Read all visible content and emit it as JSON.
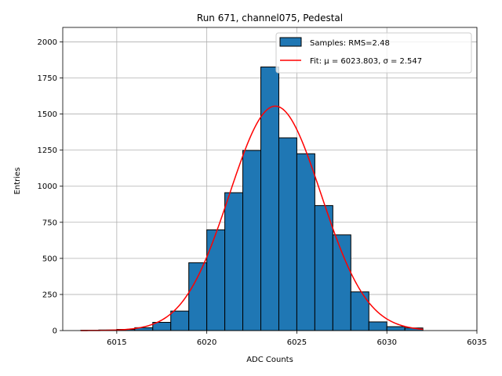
{
  "chart_data": {
    "type": "bar",
    "title": "Run 671, channel075, Pedestal",
    "xlabel": "ADC Counts",
    "ylabel": "Entries",
    "xlim": [
      6012,
      6035
    ],
    "ylim": [
      0,
      2100
    ],
    "xticks": [
      6015,
      6020,
      6025,
      6030,
      6035
    ],
    "yticks": [
      0,
      250,
      500,
      750,
      1000,
      1250,
      1500,
      1750,
      2000
    ],
    "grid": true,
    "legend_placement": "top-right",
    "histogram": {
      "name": "Samples: RMS=2.48",
      "color": "#1f77b4",
      "edgecolor": "#000000",
      "bin_width": 1,
      "bin_starts": [
        6013,
        6014,
        6015,
        6016,
        6017,
        6018,
        6019,
        6020,
        6021,
        6022,
        6023,
        6024,
        6025,
        6026,
        6027,
        6028,
        6029,
        6030,
        6031
      ],
      "counts": [
        2,
        4,
        8,
        20,
        57,
        135,
        470,
        698,
        955,
        1248,
        1826,
        1335,
        1225,
        866,
        663,
        268,
        60,
        27,
        18
      ]
    },
    "fit": {
      "name": "Fit: μ = 6023.803, σ = 2.547",
      "color": "#ff0000",
      "mu": 6023.803,
      "sigma": 2.547,
      "amplitude": 1555,
      "x_range": [
        6013,
        6032
      ]
    }
  }
}
